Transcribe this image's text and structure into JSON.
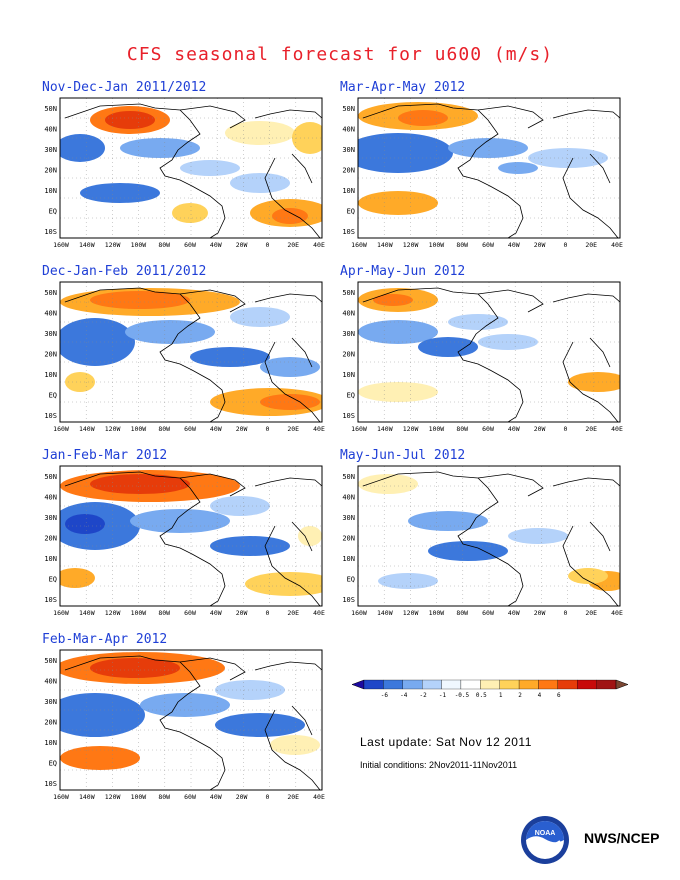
{
  "title": "CFS seasonal forecast for u600 (m/s)",
  "panels": [
    {
      "title": "Nov-Dec-Jan 2011/2012",
      "pattern": 0
    },
    {
      "title": "Mar-Apr-May 2012",
      "pattern": 4
    },
    {
      "title": "Dec-Jan-Feb 2011/2012",
      "pattern": 1
    },
    {
      "title": "Apr-May-Jun 2012",
      "pattern": 5
    },
    {
      "title": "Jan-Feb-Mar 2012",
      "pattern": 2
    },
    {
      "title": "May-Jun-Jul 2012",
      "pattern": 6
    },
    {
      "title": "Feb-Mar-Apr 2012",
      "pattern": 3
    }
  ],
  "lat_labels": [
    "50N",
    "40N",
    "30N",
    "20N",
    "10N",
    "EQ",
    "10S"
  ],
  "lon_labels": [
    "160W",
    "140W",
    "120W",
    "100W",
    "80W",
    "60W",
    "40W",
    "20W",
    "0",
    "20E",
    "40E"
  ],
  "colorbar": {
    "labels": [
      "-6",
      "-4",
      "-2",
      "-1",
      "-0.5",
      "0.5",
      "1",
      "2",
      "4",
      "6"
    ],
    "colors": [
      "#1c0aa0",
      "#1e46c8",
      "#3c78dc",
      "#78aaf0",
      "#b4d2fa",
      "#f0f8ff",
      "#ffffff",
      "#fff0b4",
      "#ffd25a",
      "#ffaa28",
      "#ff7814",
      "#e63c0a",
      "#c80a0a",
      "#a01414",
      "#7a4632"
    ]
  },
  "last_update": "Last update: Sat Nov 12 2011",
  "initial_conditions": "Initial conditions: 2Nov2011-11Nov2011",
  "agency": "NWS/NCEP",
  "logo_text": "NOAA"
}
